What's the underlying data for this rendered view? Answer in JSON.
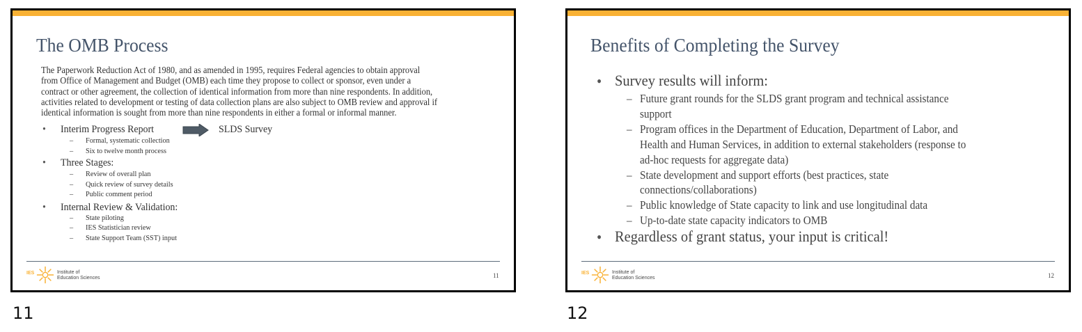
{
  "colors": {
    "accent_bar": "#f9b134",
    "title": "#44546a"
  },
  "slides": [
    {
      "title": "The OMB Process",
      "paragraph": [
        "The Paperwork Reduction Act of 1980, and as amended in 1995, requires Federal agencies to obtain approval",
        "from Office of Management and Budget (OMB) each time they propose to collect or sponsor, even under a",
        "contract or other agreement, the collection of identical information from more than nine respondents. In addition,",
        "activities related to development or testing of data collection plans are also subject to OMB review and approval if",
        "identical information is sought from more than nine respondents in either a formal or informal manner."
      ],
      "bullets": [
        {
          "text": "Interim Progress Report",
          "arrow_target": "SLDS Survey",
          "sub": [
            "Formal, systematic collection",
            "Six to twelve month process"
          ]
        },
        {
          "text": "Three Stages:",
          "sub": [
            "Review of overall plan",
            "Quick review of survey details",
            "Public comment period"
          ]
        },
        {
          "text": "Internal Review & Validation:",
          "sub": [
            "State piloting",
            "IES Statistician review",
            "State Support Team (SST) input"
          ]
        }
      ],
      "logo": {
        "abbr": "IES",
        "name_line1": "Institute of",
        "name_line2": "Education Sciences"
      },
      "page_number": "11",
      "caption": "11"
    },
    {
      "title": "Benefits of Completing the Survey",
      "bullet1": "Survey results will inform:",
      "sub_lines": [
        [
          "Future grant rounds for the SLDS grant program and technical assistance",
          "support"
        ],
        [
          "Program offices in the Department of Education, Department of Labor, and",
          "Health and Human Services, in addition to external stakeholders (response to",
          "ad-hoc requests for aggregate data)"
        ],
        [
          "State development and support efforts (best practices, state",
          "connections/collaborations)"
        ],
        [
          "Public knowledge of State capacity to link and use longitudinal data"
        ],
        [
          "Up-to-date state capacity indicators to OMB"
        ]
      ],
      "bullet2": "Regardless of grant status, your input is critical!",
      "logo": {
        "abbr": "IES",
        "name_line1": "Institute of",
        "name_line2": "Education Sciences"
      },
      "page_number": "12",
      "caption": "12"
    }
  ]
}
